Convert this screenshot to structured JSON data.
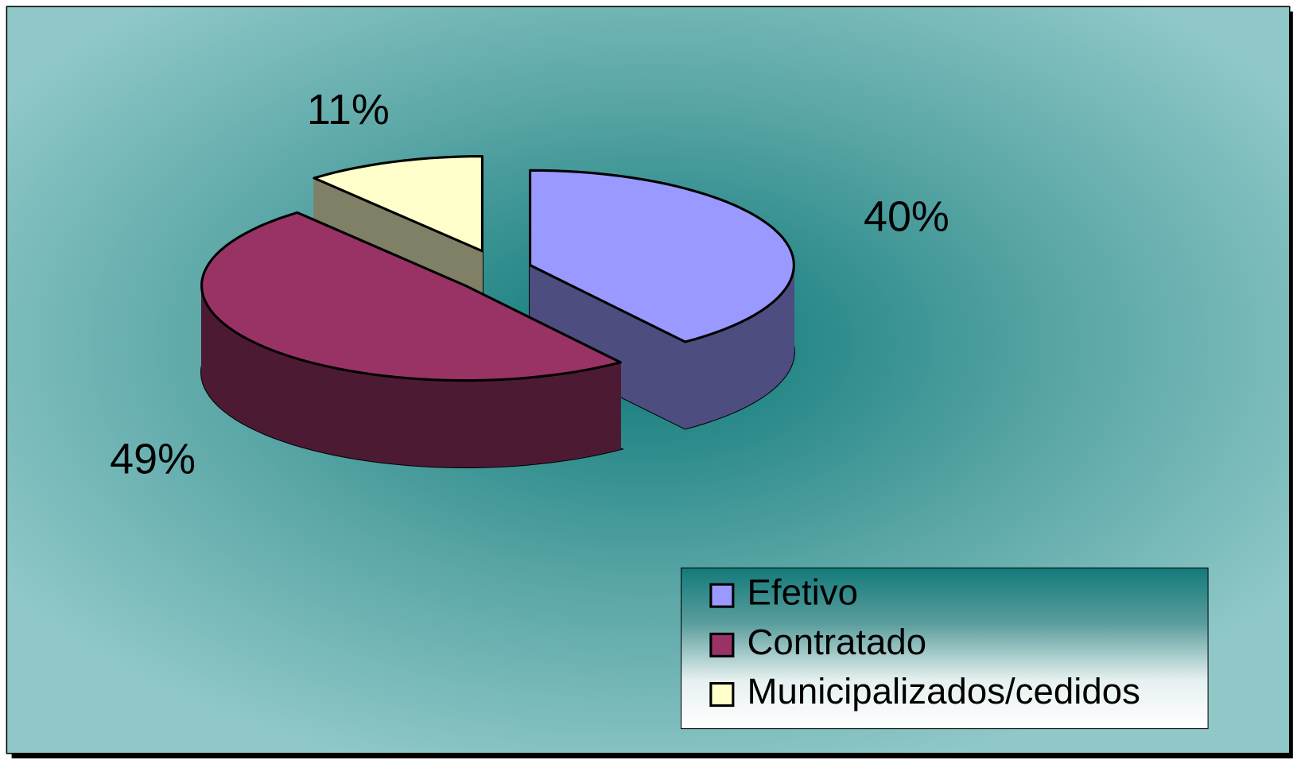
{
  "chart_data": {
    "type": "pie3d",
    "categories": [
      "Efetivo",
      "Contratado",
      "Municipalizados/cedidos"
    ],
    "values": [
      40,
      49,
      11
    ],
    "value_labels": [
      "40%",
      "49%",
      "11%"
    ],
    "colors": [
      "#9999ff",
      "#993366",
      "#ffffcc"
    ],
    "legend": "bottom-right"
  }
}
